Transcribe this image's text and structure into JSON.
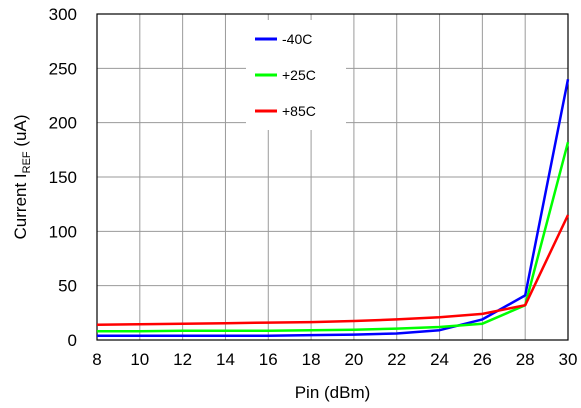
{
  "chart_data": {
    "type": "line",
    "title": "",
    "xlabel": "Pin (dBm)",
    "ylabel": "Current I",
    "ylabel_subscript": "REF",
    "ylabel_unit": " (uA)",
    "x": [
      8,
      10,
      12,
      14,
      16,
      18,
      20,
      22,
      24,
      26,
      28,
      30
    ],
    "xticks": [
      8,
      10,
      12,
      14,
      16,
      18,
      20,
      22,
      24,
      26,
      28,
      30
    ],
    "yticks": [
      0,
      50,
      100,
      150,
      200,
      250,
      300
    ],
    "xlim": [
      8,
      30
    ],
    "ylim": [
      0,
      300
    ],
    "grid": true,
    "legend_position": "top-center",
    "series": [
      {
        "name": "-40C",
        "color": "#0000ff",
        "values": [
          4,
          4,
          4,
          4,
          4,
          4.5,
          5,
          6,
          9,
          19,
          41,
          240
        ]
      },
      {
        "name": "+25C",
        "color": "#00ff00",
        "values": [
          8,
          8,
          8.5,
          8.5,
          8.5,
          9,
          9.5,
          10.5,
          12,
          15,
          32,
          182
        ]
      },
      {
        "name": "+85C",
        "color": "#ff0000",
        "values": [
          14,
          14.5,
          15,
          15.5,
          16,
          16.5,
          17.5,
          19,
          21,
          24,
          32,
          115
        ]
      }
    ]
  }
}
